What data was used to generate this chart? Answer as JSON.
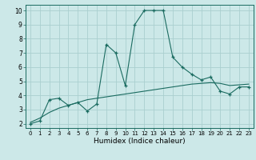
{
  "xlabel": "Humidex (Indice chaleur)",
  "ylabel": "",
  "bg_color": "#cce8e8",
  "grid_color": "#aacfcf",
  "line_color": "#1a6b60",
  "x_main": [
    0,
    1,
    2,
    3,
    4,
    5,
    6,
    7,
    8,
    9,
    10,
    11,
    12,
    13,
    14,
    15,
    16,
    17,
    18,
    19,
    20,
    21,
    22,
    23
  ],
  "y_main": [
    2.0,
    2.2,
    3.7,
    3.8,
    3.3,
    3.5,
    2.9,
    3.4,
    7.6,
    7.0,
    4.7,
    9.0,
    10.0,
    10.0,
    10.0,
    6.7,
    6.0,
    5.5,
    5.1,
    5.3,
    4.3,
    4.1,
    4.6,
    4.6
  ],
  "x_smooth": [
    0,
    1,
    2,
    3,
    4,
    5,
    6,
    7,
    8,
    9,
    10,
    11,
    12,
    13,
    14,
    15,
    16,
    17,
    18,
    19,
    20,
    21,
    22,
    23
  ],
  "y_smooth": [
    2.1,
    2.4,
    2.8,
    3.1,
    3.3,
    3.5,
    3.7,
    3.8,
    3.9,
    4.0,
    4.1,
    4.2,
    4.3,
    4.4,
    4.5,
    4.6,
    4.7,
    4.8,
    4.85,
    4.9,
    4.85,
    4.7,
    4.75,
    4.8
  ],
  "ylim_bottom": 1.7,
  "ylim_top": 10.4,
  "xlim_left": -0.5,
  "xlim_right": 23.5,
  "yticks": [
    2,
    3,
    4,
    5,
    6,
    7,
    8,
    9,
    10
  ],
  "xticks": [
    0,
    1,
    2,
    3,
    4,
    5,
    6,
    7,
    8,
    9,
    10,
    11,
    12,
    13,
    14,
    15,
    16,
    17,
    18,
    19,
    20,
    21,
    22,
    23
  ]
}
